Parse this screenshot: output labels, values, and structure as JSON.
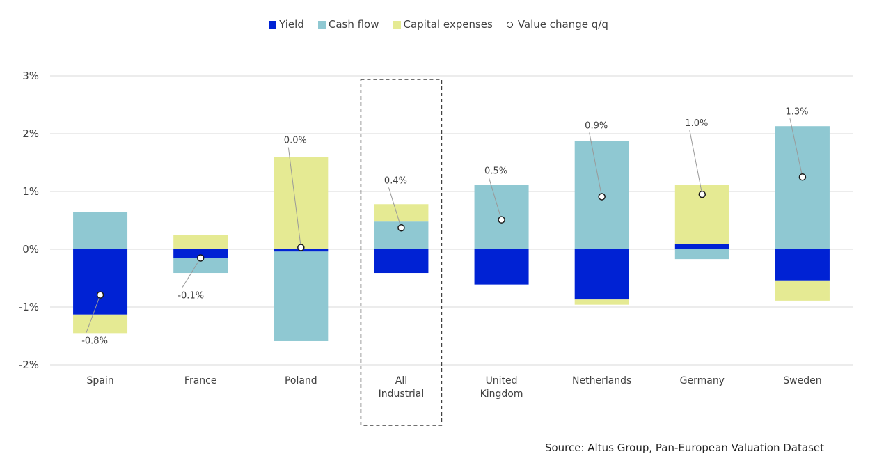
{
  "chart_data": {
    "type": "bar",
    "stacked": true,
    "title": "",
    "xlabel": "",
    "ylabel": "",
    "ylim": [
      -2,
      3
    ],
    "yticks": [
      3,
      2,
      1,
      0,
      -1,
      -2
    ],
    "ytick_labels": [
      "3%",
      "2%",
      "1%",
      "0%",
      "-1%",
      "-2%"
    ],
    "grid": true,
    "legend_position": "top-center",
    "categories": [
      "Spain",
      "France",
      "Poland",
      "All Industrial",
      "United Kingdom",
      "Netherlands",
      "Germany",
      "Sweden"
    ],
    "category_label_lines": [
      [
        "Spain"
      ],
      [
        "France"
      ],
      [
        "Poland"
      ],
      [
        "All",
        "Industrial"
      ],
      [
        "United",
        "Kingdom"
      ],
      [
        "Netherlands"
      ],
      [
        "Germany"
      ],
      [
        "Sweden"
      ]
    ],
    "highlighted_category": "All Industrial",
    "series": [
      {
        "name": "Yield",
        "color": "#0022d4",
        "values": [
          -1.13,
          -0.15,
          -0.04,
          -0.41,
          -0.61,
          -0.87,
          0.09,
          -0.54
        ]
      },
      {
        "name": "Cash flow",
        "color": "#8fc8d2",
        "values": [
          0.64,
          -0.26,
          -1.55,
          0.48,
          1.11,
          1.87,
          -0.17,
          2.13
        ]
      },
      {
        "name": "Capital expenses",
        "color": "#e5ea93",
        "values": [
          -0.32,
          0.25,
          1.6,
          0.3,
          0.0,
          -0.09,
          1.02,
          -0.35
        ]
      }
    ],
    "value_change": {
      "name": "Value change q/q",
      "values": [
        -0.79,
        -0.15,
        0.03,
        0.37,
        0.51,
        0.91,
        0.95,
        1.25
      ],
      "labels": [
        "-0.8%",
        "-0.1%",
        "0.0%",
        "0.4%",
        "0.5%",
        "0.9%",
        "1.0%",
        "1.3%"
      ]
    }
  },
  "legend": {
    "items": [
      {
        "label": "Yield",
        "type": "square",
        "color": "#0022d4"
      },
      {
        "label": "Cash flow",
        "type": "square",
        "color": "#8fc8d2"
      },
      {
        "label": "Capital expenses",
        "type": "square",
        "color": "#e5ea93"
      },
      {
        "label": "Value change q/q",
        "type": "circle",
        "color": "#ffffff"
      }
    ]
  },
  "source": "Source:  Altus Group, Pan-European Valuation Dataset"
}
